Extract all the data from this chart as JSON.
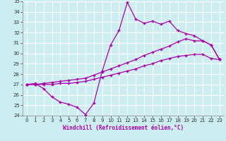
{
  "xlabel": "Windchill (Refroidissement éolien,°C)",
  "xlim": [
    -0.5,
    23.5
  ],
  "ylim": [
    24,
    35
  ],
  "xticks": [
    0,
    1,
    2,
    3,
    4,
    5,
    6,
    7,
    8,
    9,
    10,
    11,
    12,
    13,
    14,
    15,
    16,
    17,
    18,
    19,
    20,
    21,
    22,
    23
  ],
  "yticks": [
    24,
    25,
    26,
    27,
    28,
    29,
    30,
    31,
    32,
    33,
    34,
    35
  ],
  "bg_color": "#cceef0",
  "grid_color": "#ffffff",
  "line_color": "#aa00aa",
  "line1_y": [
    27.0,
    27.1,
    26.6,
    25.8,
    25.3,
    25.1,
    24.8,
    24.1,
    25.2,
    28.3,
    30.8,
    32.2,
    34.9,
    33.3,
    32.9,
    33.1,
    32.8,
    33.1,
    32.2,
    31.9,
    31.7,
    31.2,
    30.8,
    29.4
  ],
  "line2_y": [
    27.0,
    27.0,
    27.1,
    27.2,
    27.3,
    27.4,
    27.5,
    27.6,
    27.9,
    28.2,
    28.5,
    28.8,
    29.1,
    29.4,
    29.8,
    30.1,
    30.4,
    30.7,
    31.1,
    31.4,
    31.2,
    31.2,
    30.8,
    29.4
  ],
  "line3_y": [
    27.0,
    27.0,
    27.0,
    27.0,
    27.1,
    27.1,
    27.2,
    27.3,
    27.5,
    27.7,
    27.9,
    28.1,
    28.3,
    28.5,
    28.8,
    29.0,
    29.3,
    29.5,
    29.7,
    29.8,
    29.9,
    29.9,
    29.5,
    29.4
  ],
  "marker": "+",
  "marker_size": 3,
  "line_width": 0.9,
  "tick_fontsize": 5,
  "xlabel_fontsize": 5.5
}
